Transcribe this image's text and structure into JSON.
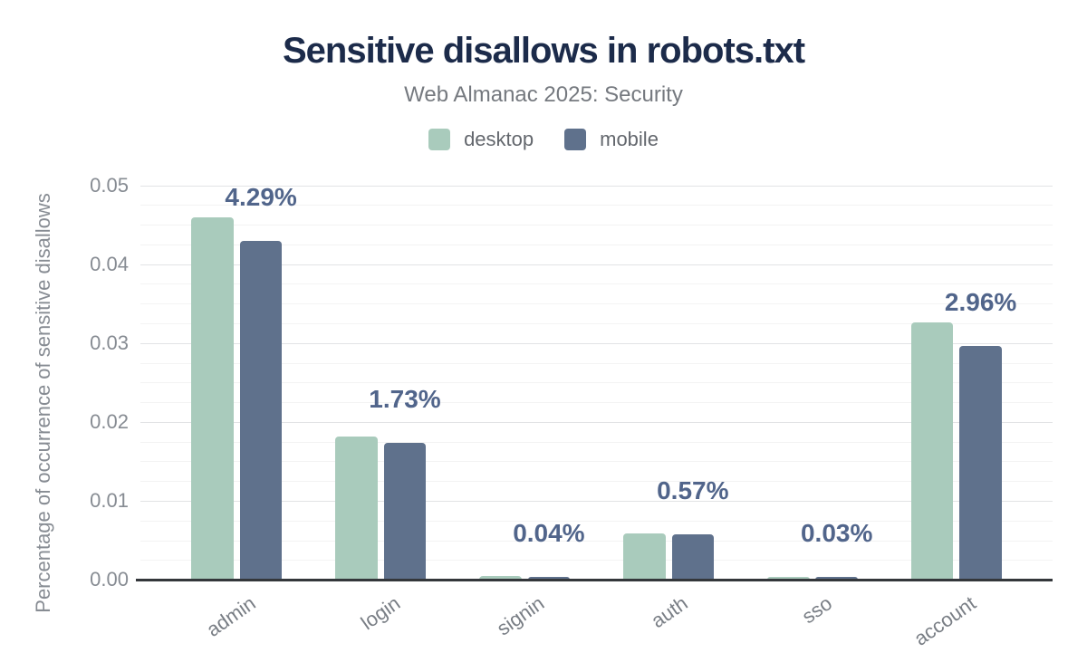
{
  "chart_data": {
    "type": "bar",
    "title": "Sensitive disallows in robots.txt",
    "subtitle": "Web Almanac 2025: Security",
    "xlabel": "",
    "ylabel": "Percentage of occurrence of sensitive disallows",
    "categories": [
      "admin",
      "login",
      "signin",
      "auth",
      "sso",
      "account"
    ],
    "series": [
      {
        "name": "desktop",
        "color": "#a9cbbc",
        "values": [
          0.0459,
          0.0181,
          0.0005,
          0.0059,
          0.0004,
          0.0326
        ]
      },
      {
        "name": "mobile",
        "color": "#5f718c",
        "values": [
          0.0429,
          0.0173,
          0.0004,
          0.0057,
          0.0003,
          0.0296
        ]
      }
    ],
    "bar_labels": {
      "labeled_series": "mobile",
      "values": [
        "4.29%",
        "1.73%",
        "0.04%",
        "0.57%",
        "0.03%",
        "2.96%"
      ]
    },
    "ylim": [
      0,
      0.05
    ],
    "yticks": [
      "0.00",
      "0.01",
      "0.02",
      "0.03",
      "0.04",
      "0.05"
    ],
    "minor_grid_step": 0.0025,
    "grid": true,
    "legend_position": "top",
    "colors": {
      "title": "#1c2b4a",
      "subtitle": "#75797f",
      "bar_label": "#51658b",
      "axis_text": "#878c93",
      "baseline": "#34373b"
    }
  }
}
